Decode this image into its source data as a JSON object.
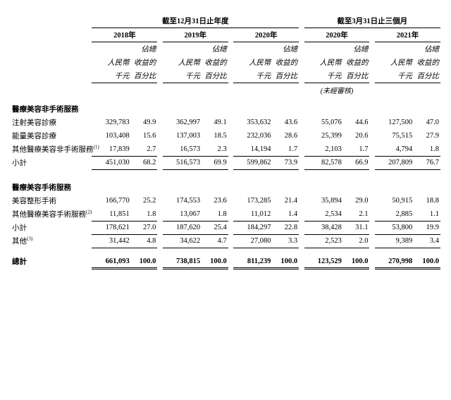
{
  "periods": {
    "annual": "截至12月31日止年度",
    "quarter": "截至3月31日止三個月"
  },
  "years": [
    "2018年",
    "2019年",
    "2020年",
    "2020年",
    "2021年"
  ],
  "col_sub": {
    "pct_top": "佔總",
    "amt": "人民幣",
    "pct": "收益的",
    "amt2": "千元",
    "pct2": "百分比"
  },
  "unaudited": "(未經審核)",
  "sections": {
    "non_surgical": {
      "title": "醫療美容非手術服務",
      "rows": [
        {
          "label": "注射美容診療",
          "vals": [
            "329,783",
            "49.9",
            "362,997",
            "49.1",
            "353,632",
            "43.6",
            "55,076",
            "44.6",
            "127,500",
            "47.0"
          ]
        },
        {
          "label": "能量美容診療",
          "vals": [
            "103,408",
            "15.6",
            "137,003",
            "18.5",
            "232,036",
            "28.6",
            "25,399",
            "20.6",
            "75,515",
            "27.9"
          ]
        },
        {
          "label": "其他醫療美容非手術服務",
          "sup": "(1)",
          "vals": [
            "17,839",
            "2.7",
            "16,573",
            "2.3",
            "14,194",
            "1.7",
            "2,103",
            "1.7",
            "4,794",
            "1.8"
          ]
        }
      ],
      "subtotal": {
        "label": "小計",
        "vals": [
          "451,030",
          "68.2",
          "516,573",
          "69.9",
          "599,862",
          "73.9",
          "82,578",
          "66.9",
          "207,809",
          "76.7"
        ]
      }
    },
    "surgical": {
      "title": "醫療美容手術服務",
      "rows": [
        {
          "label": "美容整形手術",
          "vals": [
            "166,770",
            "25.2",
            "174,553",
            "23.6",
            "173,285",
            "21.4",
            "35,894",
            "29.0",
            "50,915",
            "18.8"
          ]
        },
        {
          "label": "其他醫療美容手術服務",
          "sup": "(2)",
          "vals": [
            "11,851",
            "1.8",
            "13,067",
            "1.8",
            "11,012",
            "1.4",
            "2,534",
            "2.1",
            "2,885",
            "1.1"
          ]
        }
      ],
      "subtotal": {
        "label": "小計",
        "vals": [
          "178,621",
          "27.0",
          "187,620",
          "25.4",
          "184,297",
          "22.8",
          "38,428",
          "31.1",
          "53,800",
          "19.9"
        ]
      }
    },
    "other": {
      "label": "其他",
      "sup": "(3)",
      "vals": [
        "31,442",
        "4.8",
        "34,622",
        "4.7",
        "27,080",
        "3.3",
        "2,523",
        "2.0",
        "9,389",
        "3.4"
      ]
    },
    "total": {
      "label": "總計",
      "vals": [
        "661,093",
        "100.0",
        "738,815",
        "100.0",
        "811,239",
        "100.0",
        "123,529",
        "100.0",
        "270,998",
        "100.0"
      ]
    }
  },
  "style": {
    "font_size_pt": 10.5,
    "text_color": "#000000",
    "background_color": "#ffffff",
    "rule_color": "#000000"
  }
}
